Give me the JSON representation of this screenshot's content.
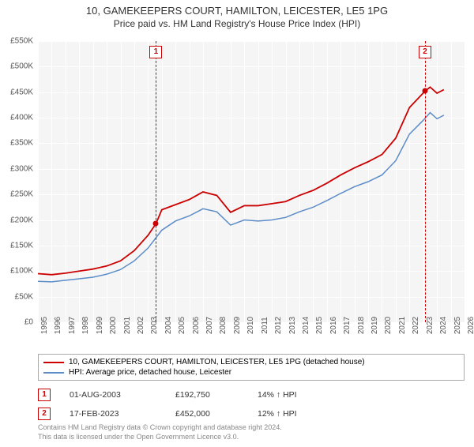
{
  "title": "10, GAMEKEEPERS COURT, HAMILTON, LEICESTER, LE5 1PG",
  "subtitle": "Price paid vs. HM Land Registry's House Price Index (HPI)",
  "chart": {
    "type": "line",
    "background_color": "#f5f5f5",
    "grid_color": "#ffffff",
    "ylim": [
      0,
      550000
    ],
    "ytick_step": 50000,
    "yticks": [
      "£0",
      "£50K",
      "£100K",
      "£150K",
      "£200K",
      "£250K",
      "£300K",
      "£350K",
      "£400K",
      "£450K",
      "£500K",
      "£550K"
    ],
    "xlim": [
      1995,
      2026
    ],
    "xticks": [
      1995,
      1996,
      1997,
      1998,
      1999,
      2000,
      2001,
      2002,
      2003,
      2004,
      2005,
      2006,
      2007,
      2008,
      2009,
      2010,
      2011,
      2012,
      2013,
      2014,
      2015,
      2016,
      2017,
      2018,
      2019,
      2020,
      2021,
      2022,
      2023,
      2024,
      2025,
      2026
    ],
    "series": [
      {
        "name": "property",
        "label": "10, GAMEKEEPERS COURT, HAMILTON, LEICESTER, LE5 1PG (detached house)",
        "color": "#cc0000",
        "line_width": 1.8,
        "data": [
          [
            1995,
            95000
          ],
          [
            1996,
            93000
          ],
          [
            1997,
            96000
          ],
          [
            1998,
            100000
          ],
          [
            1999,
            104000
          ],
          [
            2000,
            110000
          ],
          [
            2001,
            120000
          ],
          [
            2002,
            140000
          ],
          [
            2003,
            170000
          ],
          [
            2003.58,
            192750
          ],
          [
            2004,
            220000
          ],
          [
            2005,
            230000
          ],
          [
            2006,
            240000
          ],
          [
            2007,
            255000
          ],
          [
            2008,
            248000
          ],
          [
            2009,
            215000
          ],
          [
            2010,
            228000
          ],
          [
            2011,
            228000
          ],
          [
            2012,
            232000
          ],
          [
            2013,
            236000
          ],
          [
            2014,
            248000
          ],
          [
            2015,
            258000
          ],
          [
            2016,
            272000
          ],
          [
            2017,
            288000
          ],
          [
            2018,
            302000
          ],
          [
            2019,
            314000
          ],
          [
            2020,
            328000
          ],
          [
            2021,
            360000
          ],
          [
            2022,
            420000
          ],
          [
            2023.13,
            452000
          ],
          [
            2023.5,
            460000
          ],
          [
            2024,
            448000
          ],
          [
            2024.5,
            455000
          ]
        ]
      },
      {
        "name": "hpi",
        "label": "HPI: Average price, detached house, Leicester",
        "color": "#5b8cc7",
        "line_width": 1.5,
        "data": [
          [
            1995,
            80000
          ],
          [
            1996,
            79000
          ],
          [
            1997,
            82000
          ],
          [
            1998,
            85000
          ],
          [
            1999,
            88000
          ],
          [
            2000,
            94000
          ],
          [
            2001,
            103000
          ],
          [
            2002,
            120000
          ],
          [
            2003,
            145000
          ],
          [
            2004,
            180000
          ],
          [
            2005,
            198000
          ],
          [
            2006,
            208000
          ],
          [
            2007,
            222000
          ],
          [
            2008,
            216000
          ],
          [
            2009,
            190000
          ],
          [
            2010,
            200000
          ],
          [
            2011,
            198000
          ],
          [
            2012,
            200000
          ],
          [
            2013,
            205000
          ],
          [
            2014,
            216000
          ],
          [
            2015,
            225000
          ],
          [
            2016,
            238000
          ],
          [
            2017,
            252000
          ],
          [
            2018,
            265000
          ],
          [
            2019,
            275000
          ],
          [
            2020,
            288000
          ],
          [
            2021,
            316000
          ],
          [
            2022,
            368000
          ],
          [
            2023,
            395000
          ],
          [
            2023.5,
            410000
          ],
          [
            2024,
            398000
          ],
          [
            2024.5,
            405000
          ]
        ]
      }
    ],
    "markers": [
      {
        "id": "1",
        "x": 2003.58,
        "y": 192750,
        "color": "#cc0000"
      },
      {
        "id": "2",
        "x": 2023.13,
        "y": 452000,
        "color": "#cc0000"
      }
    ],
    "label_fontsize": 10,
    "title_fontsize": 13
  },
  "sales": [
    {
      "id": "1",
      "date": "01-AUG-2003",
      "price": "£192,750",
      "pct": "14% ↑ HPI"
    },
    {
      "id": "2",
      "date": "17-FEB-2023",
      "price": "£452,000",
      "pct": "12% ↑ HPI"
    }
  ],
  "footer_line1": "Contains HM Land Registry data © Crown copyright and database right 2024.",
  "footer_line2": "This data is licensed under the Open Government Licence v3.0."
}
